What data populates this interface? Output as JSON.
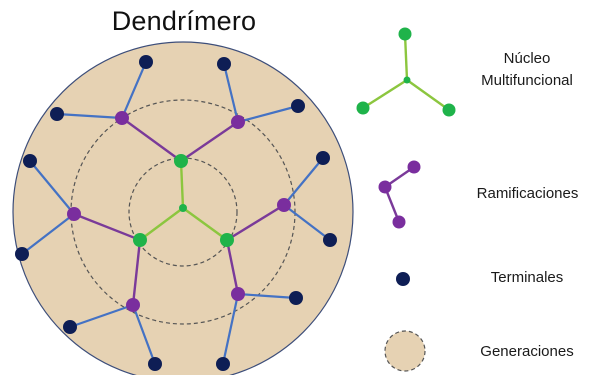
{
  "title": "Dendrímero",
  "legend": {
    "core": {
      "line1": "Núcleo",
      "line2": "Multifuncional",
      "icon": "core-icon"
    },
    "branches": {
      "label": "Ramificaciones",
      "icon": "branch-icon"
    },
    "terminals": {
      "label": "Terminales",
      "icon": "terminal-dot-icon"
    },
    "generations": {
      "label": "Generaciones",
      "icon": "generation-circle-icon"
    }
  },
  "colors": {
    "fill": "#e6d2b3",
    "outline": "#3d4e7a",
    "core_node": "#1fb34a",
    "core_link": "#8cc63f",
    "branch_node": "#7a2e9e",
    "branch_link": "#7a3a99",
    "terminal_node": "#0e1e55",
    "terminal_link": "#4472c4",
    "dash": "#555555"
  }
}
